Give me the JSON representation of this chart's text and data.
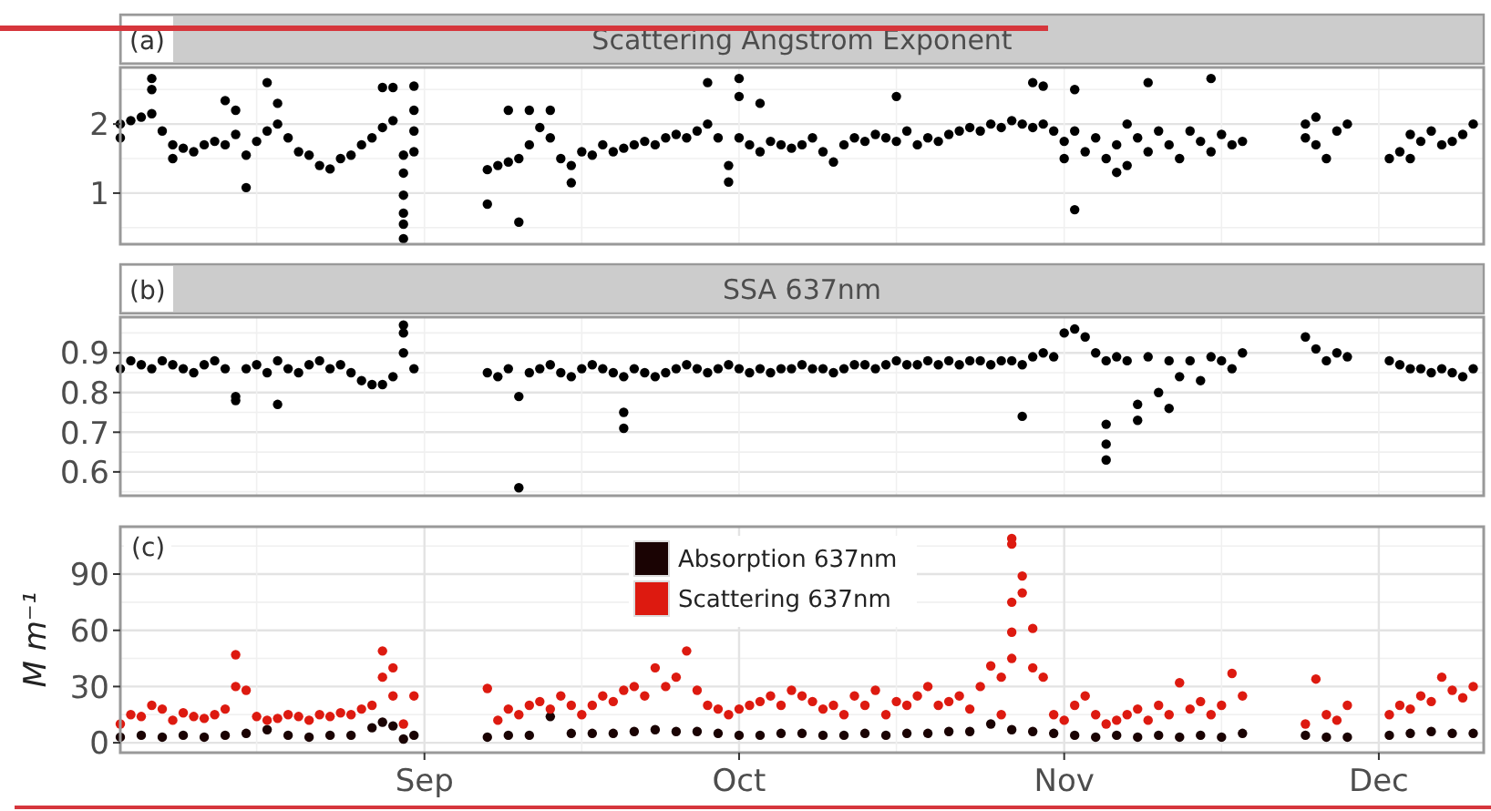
{
  "chart_data": [
    {
      "type": "scatter",
      "title": "Scattering Angstrom Exponent",
      "annotations": [
        "(a)"
      ],
      "marker": "circle",
      "grid": true,
      "tick_labels": "y",
      "xlim": [
        "--08-03",
        "--12-11"
      ],
      "xticks": [
        {
          "value": "--08-16",
          "label": null
        },
        {
          "value": "--09-01",
          "label": null
        },
        {
          "value": "--09-16",
          "label": null
        },
        {
          "value": "--10-01",
          "label": null
        },
        {
          "value": "--10-16",
          "label": null
        },
        {
          "value": "--11-01",
          "label": null
        },
        {
          "value": "--11-16",
          "label": null
        },
        {
          "value": "--12-01",
          "label": null
        }
      ],
      "ylim": [
        0.26,
        2.82
      ],
      "yticks": [
        {
          "value": 0.5,
          "label": null
        },
        1,
        {
          "value": 1.5,
          "label": null
        },
        2,
        {
          "value": 2.5,
          "label": null
        }
      ],
      "series": [
        {
          "color": "#000000",
          "x": [
            "--08-03",
            "--08-03",
            "--08-04",
            "--08-05",
            "--08-06",
            "--08-06",
            "--08-06",
            "--08-07",
            "--08-08",
            "--08-08",
            "--08-09",
            "--08-10",
            "--08-11",
            "--08-12",
            "--08-13",
            "--08-13",
            "--08-14",
            "--08-14",
            "--08-15",
            "--08-15",
            "--08-16",
            "--08-17",
            "--08-17",
            "--08-18",
            "--08-18",
            "--08-19",
            "--08-20",
            "--08-21",
            "--08-22",
            "--08-23",
            "--08-24",
            "--08-25",
            "--08-26",
            "--08-27",
            "--08-28",
            "--08-28",
            "--08-29",
            "--08-29",
            "--08-30",
            "--08-30",
            "--08-30",
            "--08-30",
            "--08-30",
            "--08-30",
            "--08-31",
            "--08-31",
            "--08-31",
            "--08-31",
            "--09-07",
            "--09-07",
            "--09-08",
            "--09-09",
            "--09-09",
            "--09-10",
            "--09-10",
            "--09-11",
            "--09-11",
            "--09-12",
            "--09-13",
            "--09-13",
            "--09-14",
            "--09-15",
            "--09-15",
            "--09-16",
            "--09-17",
            "--09-18",
            "--09-19",
            "--09-20",
            "--09-21",
            "--09-22",
            "--09-23",
            "--09-24",
            "--09-25",
            "--09-26",
            "--09-27",
            "--09-28",
            "--09-28",
            "--09-29",
            "--09-30",
            "--09-30",
            "--10-01",
            "--10-01",
            "--10-01",
            "--10-02",
            "--10-03",
            "--10-03",
            "--10-04",
            "--10-05",
            "--10-06",
            "--10-07",
            "--10-08",
            "--10-09",
            "--10-10",
            "--10-11",
            "--10-12",
            "--10-13",
            "--10-14",
            "--10-15",
            "--10-16",
            "--10-16",
            "--10-17",
            "--10-18",
            "--10-19",
            "--10-20",
            "--10-21",
            "--10-22",
            "--10-23",
            "--10-24",
            "--10-25",
            "--10-26",
            "--10-27",
            "--10-28",
            "--10-29",
            "--10-29",
            "--10-30",
            "--10-30",
            "--10-31",
            "--11-01",
            "--11-01",
            "--11-02",
            "--11-02",
            "--11-02",
            "--11-03",
            "--11-04",
            "--11-05",
            "--11-06",
            "--11-06",
            "--11-07",
            "--11-07",
            "--11-08",
            "--11-09",
            "--11-09",
            "--11-10",
            "--11-11",
            "--11-12",
            "--11-13",
            "--11-14",
            "--11-15",
            "--11-15",
            "--11-16",
            "--11-17",
            "--11-18",
            "--11-24",
            "--11-24",
            "--11-25",
            "--11-25",
            "--11-26",
            "--11-27",
            "--11-28",
            "--12-02",
            "--12-03",
            "--12-04",
            "--12-04",
            "--12-05",
            "--12-06",
            "--12-07",
            "--12-08",
            "--12-09",
            "--12-10"
          ],
          "values": [
            2.0,
            1.8,
            2.05,
            2.1,
            2.15,
            2.66,
            2.5,
            1.9,
            1.7,
            1.5,
            1.65,
            1.6,
            1.7,
            1.75,
            1.7,
            2.34,
            2.2,
            1.85,
            1.55,
            1.08,
            1.75,
            1.9,
            2.6,
            2.0,
            2.3,
            1.8,
            1.6,
            1.55,
            1.4,
            1.35,
            1.5,
            1.55,
            1.7,
            1.8,
            1.95,
            2.53,
            2.05,
            2.53,
            1.55,
            1.29,
            0.97,
            0.71,
            0.55,
            0.34,
            2.2,
            2.55,
            1.6,
            1.9,
            1.34,
            0.84,
            1.4,
            1.45,
            2.2,
            0.58,
            1.5,
            2.2,
            1.7,
            1.95,
            2.2,
            1.8,
            1.5,
            1.15,
            1.4,
            1.6,
            1.55,
            1.7,
            1.6,
            1.65,
            1.7,
            1.75,
            1.7,
            1.8,
            1.85,
            1.8,
            1.9,
            2.0,
            2.6,
            1.8,
            1.4,
            1.16,
            2.66,
            2.4,
            1.8,
            1.7,
            2.3,
            1.6,
            1.75,
            1.7,
            1.65,
            1.7,
            1.8,
            1.6,
            1.45,
            1.7,
            1.8,
            1.75,
            1.85,
            1.8,
            1.75,
            2.4,
            1.9,
            1.7,
            1.8,
            1.75,
            1.85,
            1.9,
            1.95,
            1.9,
            2.0,
            1.95,
            2.05,
            2.0,
            1.95,
            2.6,
            2.0,
            2.55,
            1.9,
            1.5,
            1.75,
            0.76,
            2.5,
            1.9,
            1.6,
            1.8,
            1.5,
            1.7,
            1.3,
            2.0,
            1.4,
            1.8,
            1.6,
            2.6,
            1.9,
            1.7,
            1.5,
            1.9,
            1.75,
            1.6,
            2.66,
            1.85,
            1.7,
            1.75,
            2.0,
            1.8,
            2.1,
            1.7,
            1.5,
            1.9,
            2.0,
            1.5,
            1.6,
            1.85,
            1.5,
            1.75,
            1.9,
            1.7,
            1.75,
            1.85,
            2.0
          ]
        }
      ]
    },
    {
      "type": "scatter",
      "title": "SSA 637nm",
      "annotations": [
        "(b)"
      ],
      "marker": "circle",
      "grid": true,
      "tick_labels": "y",
      "xlim": [
        "--08-03",
        "--12-11"
      ],
      "xticks": [
        {
          "value": "--08-16",
          "label": null
        },
        {
          "value": "--09-01",
          "label": null
        },
        {
          "value": "--09-16",
          "label": null
        },
        {
          "value": "--10-01",
          "label": null
        },
        {
          "value": "--10-16",
          "label": null
        },
        {
          "value": "--11-01",
          "label": null
        },
        {
          "value": "--11-16",
          "label": null
        },
        {
          "value": "--12-01",
          "label": null
        }
      ],
      "ylim": [
        0.54,
        0.99
      ],
      "yticks": [
        {
          "value": 0.55,
          "label": null
        },
        0.6,
        {
          "value": 0.65,
          "label": null
        },
        0.7,
        {
          "value": 0.75,
          "label": null
        },
        0.8,
        {
          "value": 0.85,
          "label": null
        },
        0.9,
        {
          "value": 0.95,
          "label": null
        }
      ],
      "series": [
        {
          "color": "#000000",
          "x": [
            "--08-03",
            "--08-04",
            "--08-05",
            "--08-06",
            "--08-07",
            "--08-08",
            "--08-09",
            "--08-10",
            "--08-11",
            "--08-12",
            "--08-13",
            "--08-14",
            "--08-14",
            "--08-15",
            "--08-16",
            "--08-17",
            "--08-18",
            "--08-18",
            "--08-19",
            "--08-20",
            "--08-21",
            "--08-22",
            "--08-23",
            "--08-24",
            "--08-25",
            "--08-26",
            "--08-27",
            "--08-28",
            "--08-29",
            "--08-30",
            "--08-30",
            "--08-30",
            "--08-31",
            "--09-07",
            "--09-08",
            "--09-09",
            "--09-10",
            "--09-10",
            "--09-11",
            "--09-12",
            "--09-13",
            "--09-14",
            "--09-15",
            "--09-16",
            "--09-17",
            "--09-18",
            "--09-19",
            "--09-20",
            "--09-20",
            "--09-20",
            "--09-21",
            "--09-22",
            "--09-23",
            "--09-24",
            "--09-25",
            "--09-26",
            "--09-27",
            "--09-28",
            "--09-29",
            "--09-30",
            "--10-01",
            "--10-02",
            "--10-03",
            "--10-04",
            "--10-05",
            "--10-06",
            "--10-07",
            "--10-08",
            "--10-09",
            "--10-10",
            "--10-11",
            "--10-12",
            "--10-13",
            "--10-14",
            "--10-15",
            "--10-16",
            "--10-17",
            "--10-18",
            "--10-19",
            "--10-20",
            "--10-21",
            "--10-22",
            "--10-23",
            "--10-24",
            "--10-25",
            "--10-26",
            "--10-27",
            "--10-28",
            "--10-28",
            "--10-29",
            "--10-30",
            "--10-31",
            "--11-01",
            "--11-02",
            "--11-03",
            "--11-04",
            "--11-05",
            "--11-05",
            "--11-05",
            "--11-05",
            "--11-06",
            "--11-07",
            "--11-08",
            "--11-08",
            "--11-09",
            "--11-10",
            "--11-11",
            "--11-11",
            "--11-12",
            "--11-13",
            "--11-14",
            "--11-15",
            "--11-16",
            "--11-17",
            "--11-18",
            "--11-24",
            "--11-25",
            "--11-26",
            "--11-27",
            "--11-28",
            "--12-02",
            "--12-03",
            "--12-04",
            "--12-05",
            "--12-06",
            "--12-07",
            "--12-08",
            "--12-09",
            "--12-10"
          ],
          "values": [
            0.86,
            0.88,
            0.87,
            0.86,
            0.88,
            0.87,
            0.86,
            0.85,
            0.87,
            0.88,
            0.86,
            0.79,
            0.78,
            0.86,
            0.87,
            0.85,
            0.88,
            0.77,
            0.86,
            0.85,
            0.87,
            0.88,
            0.86,
            0.87,
            0.85,
            0.83,
            0.82,
            0.82,
            0.84,
            0.97,
            0.95,
            0.9,
            0.86,
            0.85,
            0.84,
            0.86,
            0.56,
            0.79,
            0.85,
            0.86,
            0.87,
            0.85,
            0.84,
            0.86,
            0.87,
            0.86,
            0.85,
            0.84,
            0.75,
            0.71,
            0.86,
            0.85,
            0.84,
            0.85,
            0.86,
            0.87,
            0.86,
            0.85,
            0.86,
            0.87,
            0.86,
            0.85,
            0.86,
            0.85,
            0.86,
            0.86,
            0.87,
            0.86,
            0.86,
            0.85,
            0.86,
            0.87,
            0.87,
            0.86,
            0.87,
            0.88,
            0.87,
            0.87,
            0.88,
            0.87,
            0.88,
            0.87,
            0.88,
            0.88,
            0.87,
            0.88,
            0.88,
            0.87,
            0.74,
            0.89,
            0.9,
            0.89,
            0.95,
            0.96,
            0.94,
            0.9,
            0.88,
            0.72,
            0.67,
            0.63,
            0.89,
            0.88,
            0.77,
            0.73,
            0.89,
            0.8,
            0.88,
            0.76,
            0.84,
            0.88,
            0.83,
            0.89,
            0.88,
            0.86,
            0.9,
            0.94,
            0.91,
            0.88,
            0.9,
            0.89,
            0.88,
            0.87,
            0.86,
            0.86,
            0.85,
            0.86,
            0.85,
            0.84,
            0.86
          ]
        }
      ]
    },
    {
      "type": "scatter",
      "annotations": [
        "(c)"
      ],
      "marker": "circle",
      "grid": true,
      "legend": "top",
      "ylabel": "M m⁻¹",
      "xlim": [
        "--08-03",
        "--12-11"
      ],
      "xticks": [
        {
          "value": "--08-16",
          "label": null
        },
        {
          "value": "--09-01",
          "label": "Sep"
        },
        {
          "value": "--09-16",
          "label": null
        },
        {
          "value": "--10-01",
          "label": "Oct"
        },
        {
          "value": "--10-16",
          "label": null
        },
        {
          "value": "--11-01",
          "label": "Nov"
        },
        {
          "value": "--11-16",
          "label": null
        },
        {
          "value": "--12-01",
          "label": "Dec"
        }
      ],
      "ylim": [
        -5.3,
        115.3
      ],
      "yticks": [
        0,
        {
          "value": 15,
          "label": null
        },
        30,
        {
          "value": 45,
          "label": null
        },
        60,
        {
          "value": 75,
          "label": null
        },
        90,
        {
          "value": 105,
          "label": null
        }
      ],
      "series": [
        {
          "name": "Absorption 637nm",
          "color": "#1a0303",
          "x": [
            "--08-03",
            "--08-05",
            "--08-07",
            "--08-09",
            "--08-11",
            "--08-13",
            "--08-15",
            "--08-17",
            "--08-19",
            "--08-21",
            "--08-23",
            "--08-25",
            "--08-27",
            "--08-28",
            "--08-29",
            "--08-30",
            "--08-31",
            "--09-07",
            "--09-09",
            "--09-11",
            "--09-13",
            "--09-15",
            "--09-17",
            "--09-19",
            "--09-21",
            "--09-23",
            "--09-25",
            "--09-27",
            "--09-29",
            "--10-01",
            "--10-03",
            "--10-05",
            "--10-07",
            "--10-09",
            "--10-11",
            "--10-13",
            "--10-15",
            "--10-17",
            "--10-19",
            "--10-21",
            "--10-23",
            "--10-25",
            "--10-27",
            "--10-29",
            "--10-31",
            "--11-02",
            "--11-04",
            "--11-06",
            "--11-08",
            "--11-10",
            "--11-12",
            "--11-14",
            "--11-16",
            "--11-18",
            "--11-24",
            "--11-26",
            "--11-28",
            "--12-02",
            "--12-04",
            "--12-06",
            "--12-08",
            "--12-10"
          ],
          "values": [
            3,
            4,
            3,
            4,
            3,
            4,
            5,
            7,
            4,
            3,
            4,
            4,
            8,
            11,
            9,
            2,
            4,
            3,
            4,
            4,
            14,
            5,
            5,
            5,
            6,
            7,
            6,
            6,
            5,
            4,
            4,
            5,
            5,
            4,
            4,
            5,
            4,
            5,
            5,
            6,
            6,
            10,
            7,
            6,
            5,
            4,
            3,
            4,
            3,
            4,
            3,
            4,
            3,
            5,
            4,
            3,
            3,
            4,
            5,
            6,
            5,
            5
          ]
        },
        {
          "name": "Scattering 637nm",
          "color": "#dd1a10",
          "x": [
            "--08-03",
            "--08-04",
            "--08-05",
            "--08-06",
            "--08-07",
            "--08-08",
            "--08-09",
            "--08-10",
            "--08-11",
            "--08-12",
            "--08-13",
            "--08-14",
            "--08-14",
            "--08-15",
            "--08-16",
            "--08-17",
            "--08-18",
            "--08-19",
            "--08-20",
            "--08-21",
            "--08-22",
            "--08-23",
            "--08-24",
            "--08-25",
            "--08-26",
            "--08-27",
            "--08-28",
            "--08-28",
            "--08-29",
            "--08-29",
            "--08-30",
            "--08-31",
            "--09-07",
            "--09-08",
            "--09-09",
            "--09-10",
            "--09-11",
            "--09-12",
            "--09-13",
            "--09-14",
            "--09-15",
            "--09-16",
            "--09-17",
            "--09-18",
            "--09-19",
            "--09-20",
            "--09-21",
            "--09-22",
            "--09-23",
            "--09-24",
            "--09-25",
            "--09-26",
            "--09-27",
            "--09-28",
            "--09-29",
            "--09-30",
            "--10-01",
            "--10-02",
            "--10-03",
            "--10-04",
            "--10-05",
            "--10-06",
            "--10-07",
            "--10-08",
            "--10-09",
            "--10-10",
            "--10-11",
            "--10-12",
            "--10-13",
            "--10-14",
            "--10-15",
            "--10-16",
            "--10-17",
            "--10-18",
            "--10-19",
            "--10-20",
            "--10-21",
            "--10-22",
            "--10-23",
            "--10-24",
            "--10-25",
            "--10-26",
            "--10-26",
            "--10-27",
            "--10-27",
            "--10-27",
            "--10-27",
            "--10-27",
            "--10-28",
            "--10-28",
            "--10-29",
            "--10-29",
            "--10-30",
            "--10-31",
            "--11-01",
            "--11-02",
            "--11-03",
            "--11-04",
            "--11-05",
            "--11-06",
            "--11-07",
            "--11-08",
            "--11-09",
            "--11-10",
            "--11-11",
            "--11-12",
            "--11-13",
            "--11-14",
            "--11-15",
            "--11-16",
            "--11-17",
            "--11-18",
            "--11-24",
            "--11-25",
            "--11-26",
            "--11-27",
            "--11-28",
            "--12-02",
            "--12-03",
            "--12-04",
            "--12-05",
            "--12-06",
            "--12-07",
            "--12-08",
            "--12-09",
            "--12-10"
          ],
          "values": [
            10,
            15,
            14,
            20,
            18,
            12,
            16,
            14,
            13,
            15,
            18,
            30,
            47,
            28,
            14,
            12,
            13,
            15,
            14,
            12,
            15,
            14,
            16,
            15,
            18,
            20,
            35,
            49,
            40,
            25,
            10,
            25,
            29,
            12,
            18,
            15,
            20,
            22,
            18,
            25,
            20,
            15,
            20,
            25,
            22,
            28,
            30,
            25,
            40,
            30,
            35,
            49,
            28,
            20,
            18,
            15,
            18,
            20,
            22,
            25,
            20,
            28,
            25,
            22,
            18,
            20,
            15,
            25,
            20,
            28,
            15,
            22,
            20,
            25,
            30,
            20,
            22,
            25,
            18,
            30,
            41,
            35,
            15,
            59,
            75,
            106,
            109,
            45,
            89,
            80,
            61,
            40,
            35,
            15,
            12,
            20,
            25,
            15,
            10,
            12,
            15,
            18,
            12,
            20,
            15,
            32,
            18,
            22,
            15,
            20,
            37,
            25,
            10,
            34,
            15,
            12,
            20,
            15,
            20,
            18,
            25,
            22,
            35,
            28,
            24,
            30
          ]
        }
      ]
    }
  ]
}
